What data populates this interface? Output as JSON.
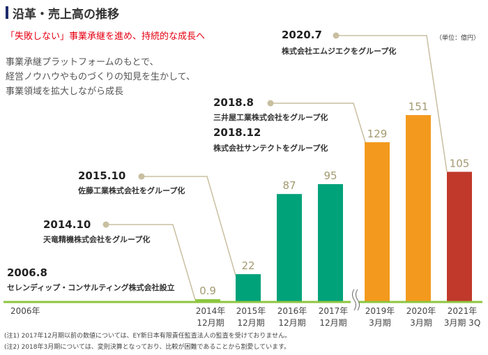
{
  "header": {
    "title": "沿革・売上高の推移",
    "subtitle": "「失敗しない」事業承継を進め、持続的な成長へ",
    "description": [
      "事業承継プラットフォームのもとで、",
      "経営ノウハウやものづくりの知見を生かして、",
      "事業領域を拡大しながら成長"
    ]
  },
  "events": [
    {
      "date": "2006.8",
      "text": "セレンディップ・コンサルティング株式会社設立"
    },
    {
      "date": "2014.10",
      "text": "天竜精機株式会社をグループ化"
    },
    {
      "date": "2015.10",
      "text": "佐藤工業株式会社をグループ化"
    },
    {
      "date": "2018.8",
      "text": "三井屋工業株式会社をグループ化"
    },
    {
      "date": "2018.12",
      "text": "株式会社サンテクトをグループ化"
    },
    {
      "date": "2020.7",
      "text": "株式会社エムジエクをグループ化"
    }
  ],
  "notes": [
    "(注1) 2017年12月期以前の数値については、EY新日本有限責任監査法人の監査を受けておりません。",
    "(注2) 2018年3月期については、変則決算となっており、比較が困難であることから割愛しています。"
  ],
  "chart_data": {
    "type": "bar",
    "unit": "（単位：億円）",
    "axis_start_label": "2006年",
    "categories": [
      [
        "2014年",
        "12月期"
      ],
      [
        "2015年",
        "12月期"
      ],
      [
        "2016年",
        "12月期"
      ],
      [
        "2017年",
        "12月期"
      ],
      [
        "2019年",
        "3月期"
      ],
      [
        "2020年",
        "3月期"
      ],
      [
        "2021年",
        "3月期 3Q"
      ]
    ],
    "values": [
      0.9,
      22,
      87,
      95,
      129,
      151,
      105
    ],
    "value_labels": [
      "0.9",
      "22",
      "87",
      "95",
      "129",
      "151",
      "105"
    ],
    "colors": [
      "#8dc63f",
      "#00a27a",
      "#00a27a",
      "#00a27a",
      "#f39a1e",
      "#f39a1e",
      "#c0392b"
    ],
    "axis_break_after": "2017年",
    "baseline_color": "#8dc63f",
    "leader_color": "#c8bfa0",
    "ylim": [
      0,
      151
    ]
  }
}
